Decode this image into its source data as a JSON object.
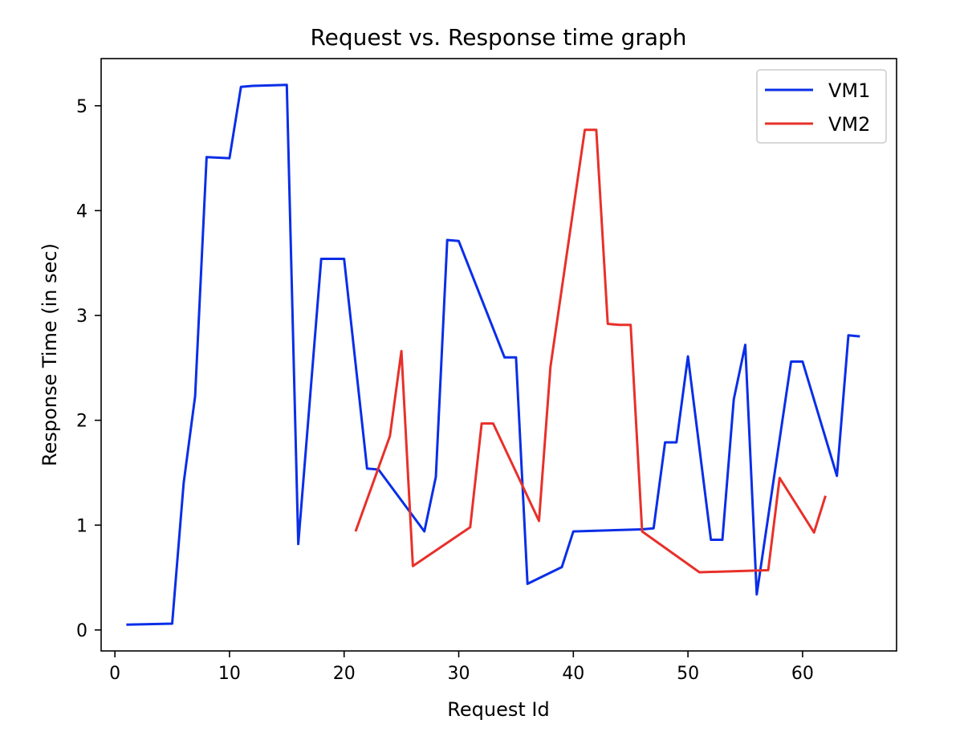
{
  "chart_data": {
    "type": "line",
    "title": "Request vs. Response time graph",
    "xlabel": "Request Id",
    "ylabel": "Response Time (in sec)",
    "xlim": [
      -1.2,
      68.2
    ],
    "ylim": [
      -0.2,
      5.45
    ],
    "xticks": [
      0,
      10,
      20,
      30,
      40,
      50,
      60
    ],
    "yticks": [
      0,
      1,
      2,
      3,
      4,
      5
    ],
    "grid": false,
    "legend_position": "top-right",
    "series": [
      {
        "name": "VM1",
        "color": "#0a2ee8",
        "x": [
          1,
          5,
          6,
          7,
          8,
          10,
          11,
          12,
          15,
          16,
          18,
          20,
          22,
          23,
          27,
          28,
          29,
          30,
          34,
          35,
          36,
          39,
          40,
          46,
          47,
          48,
          49,
          50,
          52,
          53,
          54,
          55,
          56,
          59,
          60,
          63,
          64,
          65
        ],
        "y": [
          0.05,
          0.06,
          1.4,
          2.23,
          4.51,
          4.5,
          5.18,
          5.19,
          5.2,
          0.82,
          3.54,
          3.54,
          1.54,
          1.53,
          0.94,
          1.46,
          3.72,
          3.71,
          2.6,
          2.6,
          0.44,
          0.6,
          0.94,
          0.96,
          0.97,
          1.79,
          1.79,
          2.61,
          0.86,
          0.86,
          2.2,
          2.72,
          0.34,
          2.56,
          2.56,
          1.47,
          2.81,
          2.8
        ]
      },
      {
        "name": "VM2",
        "color": "#e8302a",
        "x": [
          21,
          24,
          25,
          26,
          31,
          32,
          33,
          37,
          38,
          41,
          42,
          43,
          44,
          45,
          46,
          51,
          57,
          58,
          61,
          62
        ],
        "y": [
          0.94,
          1.85,
          2.66,
          0.61,
          0.98,
          1.97,
          1.97,
          1.04,
          2.51,
          4.77,
          4.77,
          2.92,
          2.91,
          2.91,
          0.94,
          0.55,
          0.57,
          1.45,
          0.93,
          1.28
        ]
      }
    ]
  }
}
